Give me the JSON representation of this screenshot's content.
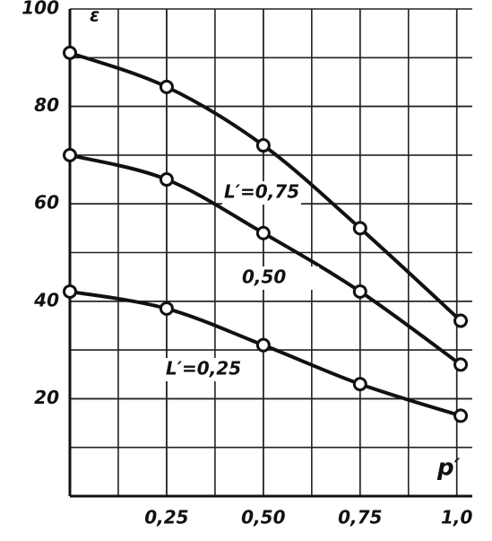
{
  "chart_data": {
    "type": "line",
    "x_label": "p′",
    "y_label": "ε",
    "x": [
      0,
      0.25,
      0.5,
      0.75,
      1.01
    ],
    "series": [
      {
        "name": "L′=0,75",
        "color": "#111111",
        "values": [
          91,
          84,
          72,
          55,
          36
        ]
      },
      {
        "name": "0,50",
        "color": "#111111",
        "values": [
          70,
          65,
          54,
          42,
          27
        ]
      },
      {
        "name": "L′=0,25",
        "color": "#111111",
        "values": [
          42,
          38.5,
          31,
          23,
          16.5
        ]
      }
    ],
    "xlim": [
      0,
      1.04
    ],
    "ylim": [
      0,
      100
    ],
    "xticks": [
      {
        "value": 0.25,
        "label": "0,25"
      },
      {
        "value": 0.5,
        "label": "0,50"
      },
      {
        "value": 0.75,
        "label": "0,75"
      },
      {
        "value": 1.0,
        "label": "1,0"
      }
    ],
    "yticks": [
      20,
      40,
      60,
      80,
      100
    ],
    "grid": true
  }
}
